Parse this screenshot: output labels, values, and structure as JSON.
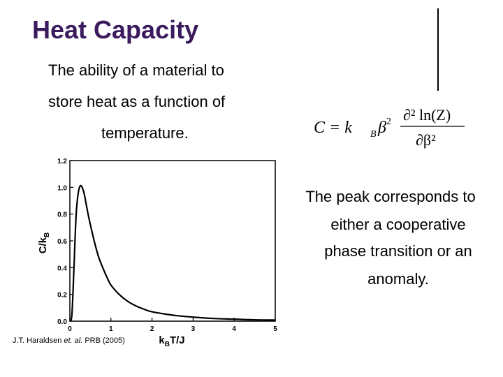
{
  "slide": {
    "title": "Heat Capacity",
    "intro_lines": [
      "The ability of a material to",
      "store heat as a function of",
      "temperature."
    ],
    "peak_lines": [
      "The peak corresponds to",
      "either a cooperative",
      "phase transition or an",
      "anomaly."
    ],
    "citation_prefix": "J.T. Haraldsen ",
    "citation_italic": "et. al.",
    "citation_suffix": " PRB (2005)"
  },
  "formula": {
    "lhs": "C = k",
    "sub_b": "B",
    "beta": "β",
    "exp2": "2",
    "numerator": "∂² ln(Z)",
    "denominator": "∂β²"
  },
  "chart_data": {
    "type": "line",
    "title": "",
    "xlabel": "kBT/J",
    "ylabel": "C/kB",
    "xlabel_main": "k",
    "xlabel_sub": "B",
    "xlabel_tail": "T/J",
    "ylabel_main": "C/k",
    "ylabel_sub": "B",
    "xlim": [
      0,
      5
    ],
    "ylim": [
      0,
      1.2
    ],
    "x_ticks": [
      "0",
      "1",
      "2",
      "3",
      "4",
      "5"
    ],
    "y_ticks": [
      "0.0",
      "0.2",
      "0.4",
      "0.6",
      "0.8",
      "1.0",
      "1.2"
    ],
    "grid": false,
    "series": [
      {
        "x": [
          0,
          0.05,
          0.1,
          0.15,
          0.2,
          0.25,
          0.3,
          0.35,
          0.4,
          0.45,
          0.5,
          0.6,
          0.7,
          0.8,
          0.9,
          1.0,
          1.2,
          1.4,
          1.6,
          1.8,
          2.0,
          2.5,
          3.0,
          3.5,
          4.0,
          4.5,
          5.0
        ],
        "y": [
          0,
          0.05,
          0.4,
          0.78,
          0.95,
          1.01,
          1.0,
          0.95,
          0.87,
          0.79,
          0.72,
          0.59,
          0.48,
          0.4,
          0.33,
          0.27,
          0.2,
          0.15,
          0.115,
          0.09,
          0.07,
          0.045,
          0.03,
          0.02,
          0.015,
          0.01,
          0.008
        ]
      }
    ]
  }
}
